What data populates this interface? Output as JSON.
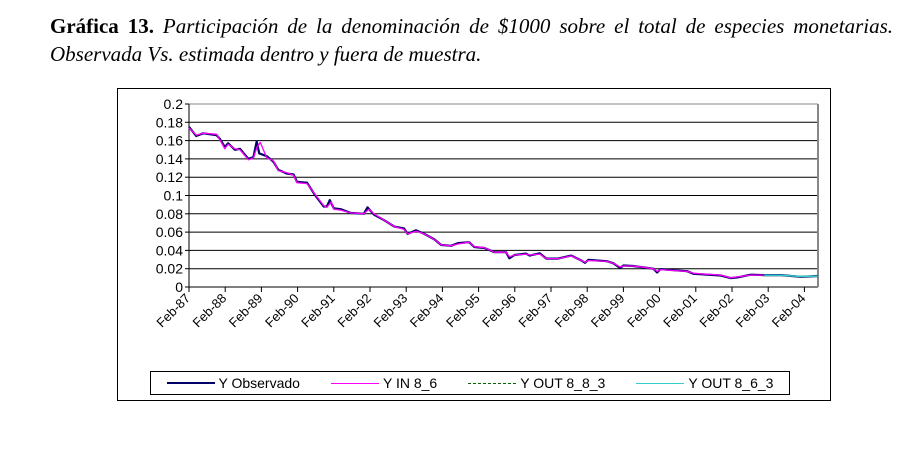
{
  "caption": {
    "label": "Gráfica 13.",
    "text": "Participación de la denominación de $1000 sobre el total de especies monetarias. Observada Vs. estimada dentro y fuera de muestra."
  },
  "chart_data": {
    "type": "line",
    "title": "",
    "xlabel": "",
    "ylabel": "",
    "ylim": [
      0,
      0.2
    ],
    "xlim": [
      1987.0,
      2004.37
    ],
    "y_ticks": [
      "0",
      "0.02",
      "0.04",
      "0.06",
      "0.08",
      "0.1",
      "0.12",
      "0.14",
      "0.16",
      "0.18",
      "0.2"
    ],
    "x_ticks": [
      "Feb-87",
      "Feb-88",
      "Feb-89",
      "Feb-90",
      "Feb-91",
      "Feb-92",
      "Feb-93",
      "Feb-94",
      "Feb-95",
      "Feb-96",
      "Feb-97",
      "Feb-98",
      "Feb-99",
      "Feb-00",
      "Feb-01",
      "Feb-02",
      "Feb-03",
      "Feb-04"
    ],
    "grid": "horizontal",
    "legend_position": "bottom",
    "series": [
      {
        "name": "Y Observado",
        "color": "#000066",
        "dash": false,
        "x": [
          1987.0,
          1987.2,
          1987.39,
          1987.76,
          1987.85,
          1987.99,
          1988.08,
          1988.27,
          1988.41,
          1988.64,
          1988.78,
          1988.87,
          1988.94,
          1989.15,
          1989.33,
          1989.47,
          1989.7,
          1989.89,
          1989.98,
          1990.26,
          1990.49,
          1990.72,
          1990.81,
          1990.89,
          1991.0,
          1991.19,
          1991.46,
          1991.83,
          1991.93,
          1992.11,
          1992.39,
          1992.67,
          1992.94,
          1993.04,
          1993.27,
          1993.5,
          1993.78,
          1993.96,
          1994.24,
          1994.43,
          1994.74,
          1994.88,
          1995.16,
          1995.44,
          1995.76,
          1995.85,
          1995.99,
          1996.31,
          1996.41,
          1996.69,
          1996.87,
          1997.19,
          1997.56,
          1997.84,
          1997.94,
          1998.03,
          1998.54,
          1998.72,
          1998.91,
          1999.0,
          1999.28,
          1999.83,
          1999.93,
          2000.02,
          2000.76,
          2000.94,
          2001.69,
          2001.96,
          2002.15,
          2002.52,
          2002.89,
          2003.35,
          2003.91,
          2004.37
        ],
        "y": [
          0.175,
          0.165,
          0.168,
          0.166,
          0.162,
          0.153,
          0.157,
          0.15,
          0.151,
          0.14,
          0.142,
          0.159,
          0.146,
          0.143,
          0.137,
          0.128,
          0.124,
          0.123,
          0.115,
          0.114,
          0.1,
          0.088,
          0.088,
          0.095,
          0.086,
          0.085,
          0.081,
          0.08,
          0.087,
          0.079,
          0.073,
          0.066,
          0.064,
          0.058,
          0.062,
          0.058,
          0.052,
          0.046,
          0.045,
          0.048,
          0.049,
          0.0437,
          0.0426,
          0.038,
          0.038,
          0.0314,
          0.035,
          0.0365,
          0.0343,
          0.0368,
          0.031,
          0.031,
          0.0343,
          0.029,
          0.0264,
          0.0296,
          0.0282,
          0.026,
          0.0208,
          0.0235,
          0.023,
          0.02,
          0.0159,
          0.0195,
          0.0173,
          0.0144,
          0.0126,
          0.0097,
          0.0105,
          0.0134,
          0.013,
          0.013,
          0.0112,
          0.012
        ]
      },
      {
        "name": "Y IN 8_6",
        "color": "#ff00ff",
        "dash": false,
        "x": [
          1987.0,
          1987.2,
          1987.39,
          1987.76,
          1987.85,
          1987.99,
          1988.08,
          1988.27,
          1988.41,
          1988.64,
          1988.78,
          1988.87,
          1988.97,
          1989.15,
          1989.33,
          1989.47,
          1989.7,
          1989.89,
          1989.98,
          1990.26,
          1990.49,
          1990.72,
          1990.81,
          1990.93,
          1991.0,
          1991.19,
          1991.46,
          1991.83,
          1991.97,
          1992.11,
          1992.39,
          1992.67,
          1992.94,
          1993.04,
          1993.27,
          1993.5,
          1993.78,
          1993.96,
          1994.24,
          1994.43,
          1994.74,
          1994.88,
          1995.16,
          1995.44,
          1995.76,
          1995.85,
          1995.99,
          1996.31,
          1996.41,
          1996.69,
          1996.87,
          1997.19,
          1997.56,
          1997.84,
          1997.94,
          1998.03,
          1998.54,
          1998.72,
          1998.91,
          1999.0,
          1999.28,
          1999.83,
          1999.93,
          2000.02,
          2000.76,
          2000.94,
          2001.69,
          2001.96,
          2002.15,
          2002.52,
          2002.89
        ],
        "y": [
          0.174,
          0.166,
          0.168,
          0.167,
          0.161,
          0.151,
          0.156,
          0.151,
          0.15,
          0.139,
          0.141,
          0.152,
          0.158,
          0.141,
          0.138,
          0.127,
          0.125,
          0.122,
          0.114,
          0.113,
          0.101,
          0.089,
          0.087,
          0.093,
          0.085,
          0.084,
          0.081,
          0.08,
          0.085,
          0.08,
          0.073,
          0.066,
          0.063,
          0.058,
          0.061,
          0.058,
          0.052,
          0.046,
          0.045,
          0.047,
          0.049,
          0.044,
          0.043,
          0.038,
          0.038,
          0.033,
          0.035,
          0.036,
          0.035,
          0.036,
          0.031,
          0.031,
          0.034,
          0.029,
          0.027,
          0.029,
          0.028,
          0.026,
          0.022,
          0.023,
          0.023,
          0.02,
          0.017,
          0.019,
          0.017,
          0.015,
          0.013,
          0.01,
          0.011,
          0.013,
          0.013
        ]
      },
      {
        "name": "Y OUT 8_8_3",
        "color": "#006600",
        "dash": true,
        "x": [
          2002.89,
          2003.35,
          2003.91,
          2004.37
        ],
        "y": [
          0.013,
          0.0128,
          0.0116,
          0.0118
        ]
      },
      {
        "name": "Y OUT 8_6_3",
        "color": "#33cccc",
        "dash": false,
        "x": [
          2002.89,
          2003.35,
          2003.91,
          2004.37
        ],
        "y": [
          0.013,
          0.0129,
          0.0115,
          0.0119
        ]
      }
    ]
  }
}
